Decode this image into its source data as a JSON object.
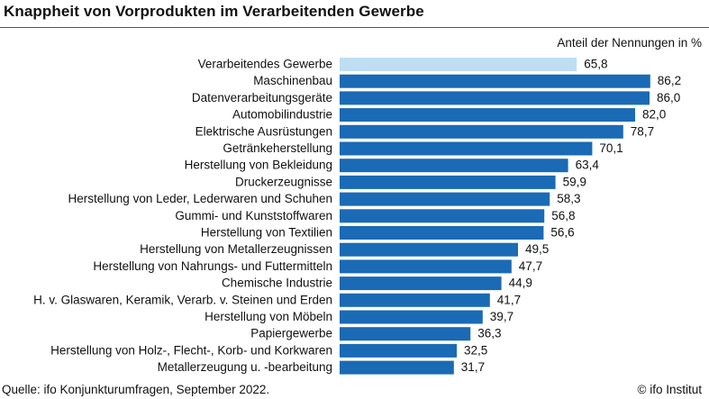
{
  "header": {
    "title": "Knappheit von Vorprodukten im Verarbeitenden Gewerbe",
    "unit_label": "Anteil der Nennungen in %"
  },
  "footer": {
    "source": "Quelle: ifo Konjunkturumfragen, September 2022.",
    "credit": "© ifo Institut"
  },
  "colors": {
    "bar": "#1A6AB5",
    "highlight_bar": "#BFDDF3"
  },
  "chart_data": {
    "type": "bar",
    "orientation": "horizontal",
    "title": "Knappheit von Vorprodukten im Verarbeitenden Gewerbe",
    "unit": "Anteil der Nennungen in %",
    "categories": [
      "Verarbeitendes Gewerbe",
      "Maschinenbau",
      "Datenverarbeitungsgeräte",
      "Automobilindustrie",
      "Elektrische Ausrüstungen",
      "Getränkeherstellung",
      "Herstellung von Bekleidung",
      "Druckerzeugnisse",
      "Herstellung von Leder, Lederwaren und Schuhen",
      "Gummi- und Kunststoffwaren",
      "Herstellung von Textilien",
      "Herstellung von Metallerzeugnissen",
      "Herstellung von Nahrungs- und Futtermitteln",
      "Chemische Industrie",
      "H. v. Glaswaren, Keramik, Verarb. v. Steinen und Erden",
      "Herstellung von Möbeln",
      "Papiergewerbe",
      "Herstellung von Holz-, Flecht-, Korb- und Korkwaren",
      "Metallerzeugung u. -bearbeitung"
    ],
    "values": [
      65.8,
      86.2,
      86.0,
      82.0,
      78.7,
      70.1,
      63.4,
      59.9,
      58.3,
      56.8,
      56.6,
      49.5,
      47.7,
      44.9,
      41.7,
      39.7,
      36.3,
      32.5,
      31.7
    ],
    "value_labels": [
      "65,8",
      "86,2",
      "86,0",
      "82,0",
      "78,7",
      "70,1",
      "63,4",
      "59,9",
      "58,3",
      "56,8",
      "56,6",
      "49,5",
      "47,7",
      "44,9",
      "41,7",
      "39,7",
      "36,3",
      "32,5",
      "31,7"
    ],
    "highlight_index": 0,
    "xlim": [
      0,
      100
    ],
    "grid": false,
    "legend": "none"
  }
}
